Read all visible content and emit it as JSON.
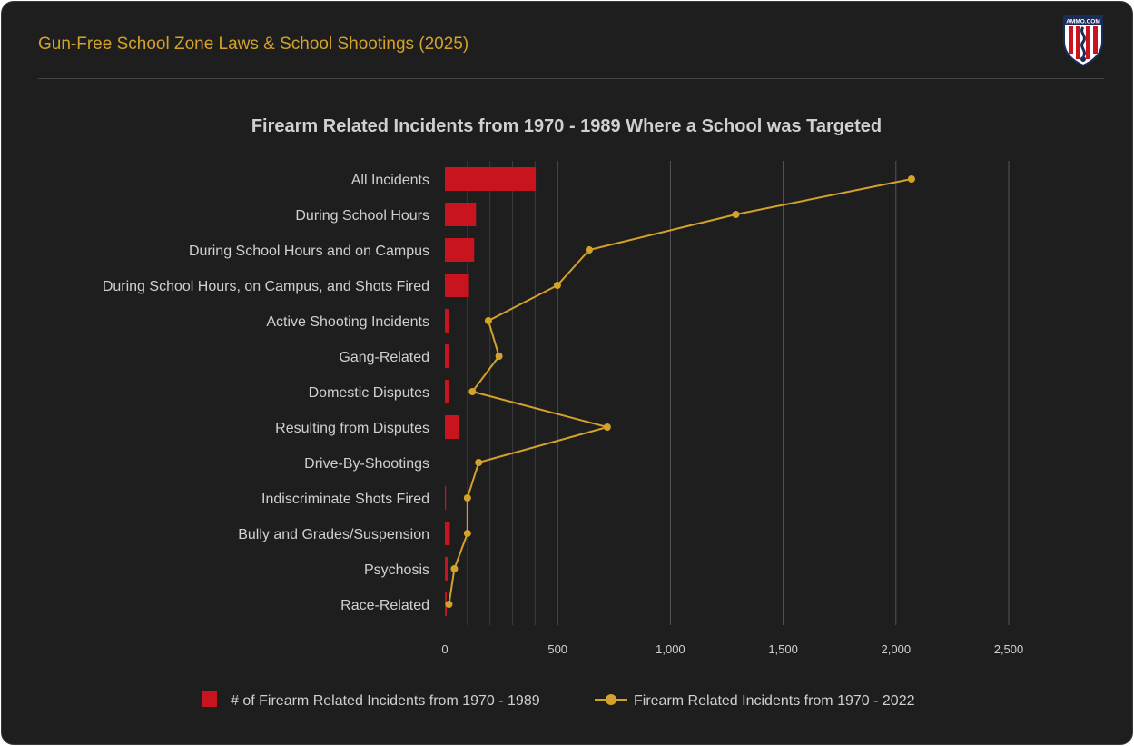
{
  "header": {
    "title": "Gun-Free School Zone Laws & School Shootings (2025)",
    "logo_text": "AMMO.COM"
  },
  "colors": {
    "bar": "#c8141e",
    "line": "#d4a22a",
    "grid": "#4a4a4a",
    "text": "#d0d0d0"
  },
  "chart_data": {
    "type": "bar",
    "title": "Firearm Related Incidents from 1970 - 1989 Where a School was Targeted",
    "orientation": "horizontal",
    "categories": [
      "All Incidents",
      "During School Hours",
      "During School Hours and on Campus",
      "During School Hours, on Campus, and Shots Fired",
      "Active Shooting Incidents",
      "Gang-Related",
      "Domestic Disputes",
      "Resulting from Disputes",
      "Drive-By-Shootings",
      "Indiscriminate Shots Fired",
      "Bully and Grades/Suspension",
      "Psychosis",
      "Race-Related"
    ],
    "series": [
      {
        "name": "# of Firearm Related Incidents from 1970 - 1989",
        "kind": "bar",
        "values": [
          403,
          138,
          130,
          107,
          18,
          16,
          16,
          65,
          0,
          5,
          22,
          12,
          8
        ]
      },
      {
        "name": "Firearm Related Incidents from 1970 - 2022",
        "kind": "line",
        "values": [
          2069,
          1290,
          640,
          499,
          193,
          240,
          122,
          720,
          150,
          100,
          100,
          42,
          18
        ]
      }
    ],
    "xlim": [
      0,
      2500
    ],
    "xticks": [
      0,
      500,
      1000,
      1500,
      2000,
      2500
    ],
    "xtick_labels": [
      "0",
      "500",
      "1,000",
      "1,500",
      "2,000",
      "2,500"
    ],
    "grid": true,
    "legend": "bottom"
  }
}
